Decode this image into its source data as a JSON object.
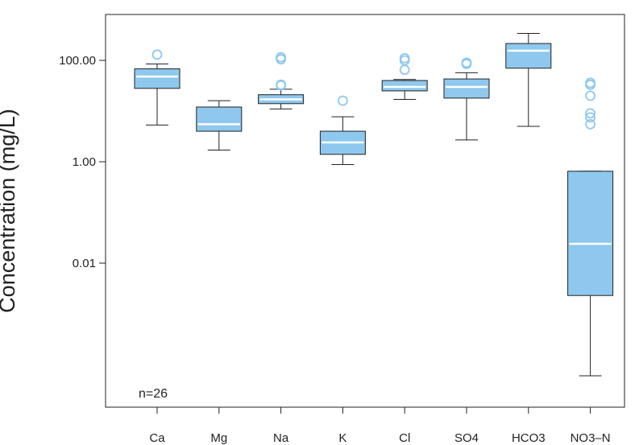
{
  "chart_data": {
    "type": "boxplot",
    "yscale": "log",
    "ylabel": "Concentration (mg/L)",
    "ylim": [
      3e-05,
      500
    ],
    "yticks": [
      {
        "value": 100,
        "label": "100.00"
      },
      {
        "value": 1,
        "label": "1.00"
      },
      {
        "value": 0.01,
        "label": "0.01"
      }
    ],
    "annotation": "n=26",
    "box_fill": "#8ec8ee",
    "median_color": "#ffffff",
    "outlier_color": "#8ec8ee",
    "categories": [
      "Ca",
      "Mg",
      "Na",
      "K",
      "Cl",
      "SO4",
      "HCO3",
      "NO3–N"
    ],
    "boxes": [
      {
        "label": "Ca",
        "whisker_low": 5.3,
        "q1": 28,
        "median": 48,
        "q3": 68,
        "whisker_high": 85,
        "outliers": [
          130
        ]
      },
      {
        "label": "Mg",
        "whisker_low": 1.7,
        "q1": 4.0,
        "median": 5.5,
        "q3": 12,
        "whisker_high": 16,
        "outliers": []
      },
      {
        "label": "Na",
        "whisker_low": 11,
        "q1": 14,
        "median": 17,
        "q3": 21,
        "whisker_high": 27,
        "outliers": [
          32,
          33,
          105,
          115
        ]
      },
      {
        "label": "K",
        "whisker_low": 0.88,
        "q1": 1.4,
        "median": 2.4,
        "q3": 4.0,
        "whisker_high": 7.7,
        "outliers": [
          16
        ]
      },
      {
        "label": "Cl",
        "whisker_low": 17,
        "q1": 25,
        "median": 30,
        "q3": 40,
        "whisker_high": 42,
        "outliers": [
          65,
          100,
          110
        ]
      },
      {
        "label": "SO4",
        "whisker_low": 2.7,
        "q1": 18,
        "median": 30,
        "q3": 43,
        "whisker_high": 57,
        "outliers": [
          85,
          90
        ]
      },
      {
        "label": "HCO3",
        "whisker_low": 5.0,
        "q1": 70,
        "median": 155,
        "q3": 215,
        "whisker_high": 340,
        "outliers": []
      },
      {
        "label": "NO3–N",
        "whisker_low": 6e-05,
        "q1": 0.0023,
        "median": 0.024,
        "q3": 0.65,
        "whisker_high": 0.65,
        "outliers": [
          5.5,
          7.5,
          9.0,
          20,
          33,
          36
        ]
      }
    ]
  }
}
